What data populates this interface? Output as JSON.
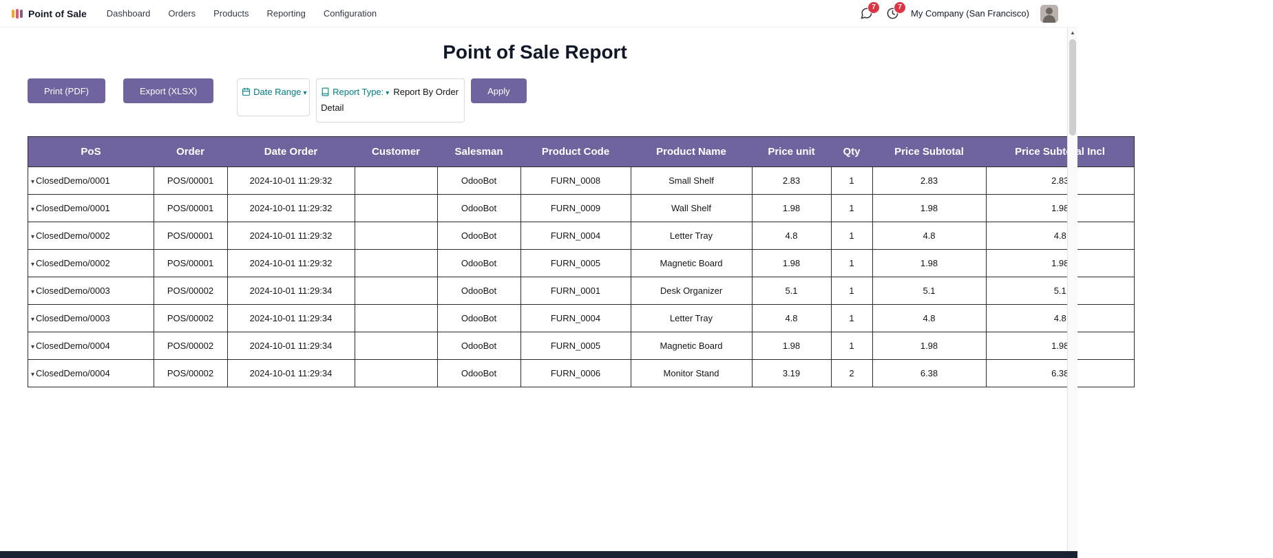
{
  "nav": {
    "app_name": "Point of Sale",
    "items": [
      "Dashboard",
      "Orders",
      "Products",
      "Reporting",
      "Configuration"
    ],
    "messages_badge": "7",
    "activities_badge": "7",
    "company": "My Company (San Francisco)"
  },
  "page": {
    "title": "Point of Sale Report"
  },
  "toolbar": {
    "print_label": "Print (PDF)",
    "export_label": "Export (XLSX)",
    "date_range_label": "Date Range",
    "report_type_label": "Report Type:",
    "report_type_value": "Report By Order Detail",
    "apply_label": "Apply"
  },
  "icons": {
    "dropdown_caret": "▾",
    "row_expand_caret": "▾",
    "scroll_up_arrow": "▲"
  },
  "colors": {
    "primary_purple": "#71639e",
    "accent_teal": "#017e84",
    "badge_red": "#dc3545",
    "table_header_bg": "#71639e",
    "bottom_bar": "#1a2332"
  },
  "table": {
    "headers": [
      "PoS",
      "Order",
      "Date Order",
      "Customer",
      "Salesman",
      "Product Code",
      "Product Name",
      "Price unit",
      "Qty",
      "Price Subtotal",
      "Price Subtotal Incl"
    ],
    "rows": [
      {
        "pos": "ClosedDemo/0001",
        "order": "POS/00001",
        "date_order": "2024-10-01 11:29:32",
        "customer": "",
        "salesman": "OdooBot",
        "product_code": "FURN_0008",
        "product_name": "Small Shelf",
        "price_unit": "2.83",
        "qty": "1",
        "price_subtotal": "2.83",
        "price_subtotal_incl": "2.83"
      },
      {
        "pos": "ClosedDemo/0001",
        "order": "POS/00001",
        "date_order": "2024-10-01 11:29:32",
        "customer": "",
        "salesman": "OdooBot",
        "product_code": "FURN_0009",
        "product_name": "Wall Shelf",
        "price_unit": "1.98",
        "qty": "1",
        "price_subtotal": "1.98",
        "price_subtotal_incl": "1.98"
      },
      {
        "pos": "ClosedDemo/0002",
        "order": "POS/00001",
        "date_order": "2024-10-01 11:29:32",
        "customer": "",
        "salesman": "OdooBot",
        "product_code": "FURN_0004",
        "product_name": "Letter Tray",
        "price_unit": "4.8",
        "qty": "1",
        "price_subtotal": "4.8",
        "price_subtotal_incl": "4.8"
      },
      {
        "pos": "ClosedDemo/0002",
        "order": "POS/00001",
        "date_order": "2024-10-01 11:29:32",
        "customer": "",
        "salesman": "OdooBot",
        "product_code": "FURN_0005",
        "product_name": "Magnetic Board",
        "price_unit": "1.98",
        "qty": "1",
        "price_subtotal": "1.98",
        "price_subtotal_incl": "1.98"
      },
      {
        "pos": "ClosedDemo/0003",
        "order": "POS/00002",
        "date_order": "2024-10-01 11:29:34",
        "customer": "",
        "salesman": "OdooBot",
        "product_code": "FURN_0001",
        "product_name": "Desk Organizer",
        "price_unit": "5.1",
        "qty": "1",
        "price_subtotal": "5.1",
        "price_subtotal_incl": "5.1"
      },
      {
        "pos": "ClosedDemo/0003",
        "order": "POS/00002",
        "date_order": "2024-10-01 11:29:34",
        "customer": "",
        "salesman": "OdooBot",
        "product_code": "FURN_0004",
        "product_name": "Letter Tray",
        "price_unit": "4.8",
        "qty": "1",
        "price_subtotal": "4.8",
        "price_subtotal_incl": "4.8"
      },
      {
        "pos": "ClosedDemo/0004",
        "order": "POS/00002",
        "date_order": "2024-10-01 11:29:34",
        "customer": "",
        "salesman": "OdooBot",
        "product_code": "FURN_0005",
        "product_name": "Magnetic Board",
        "price_unit": "1.98",
        "qty": "1",
        "price_subtotal": "1.98",
        "price_subtotal_incl": "1.98"
      },
      {
        "pos": "ClosedDemo/0004",
        "order": "POS/00002",
        "date_order": "2024-10-01 11:29:34",
        "customer": "",
        "salesman": "OdooBot",
        "product_code": "FURN_0006",
        "product_name": "Monitor Stand",
        "price_unit": "3.19",
        "qty": "2",
        "price_subtotal": "6.38",
        "price_subtotal_incl": "6.38"
      }
    ]
  }
}
